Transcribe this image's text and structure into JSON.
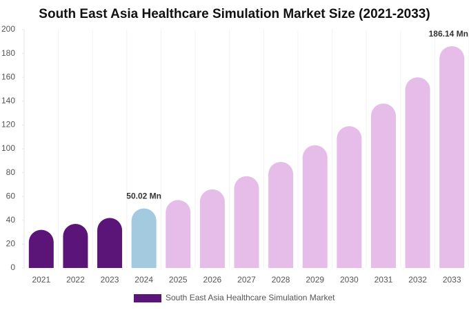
{
  "chart_data": {
    "type": "bar",
    "title": "South East Asia Healthcare Simulation Market Size (2021-2033)",
    "categories": [
      "2021",
      "2022",
      "2023",
      "2024",
      "2025",
      "2026",
      "2027",
      "2028",
      "2029",
      "2030",
      "2031",
      "2032",
      "2033"
    ],
    "series": [
      {
        "name": "South East Asia Healthcare Simulation Market",
        "color": "#5b1478",
        "values": [
          32,
          37,
          42,
          50.02,
          57,
          66,
          77,
          89,
          103,
          119,
          138,
          160,
          186.14
        ],
        "value_labels": [
          null,
          null,
          null,
          "50.02 Mn",
          null,
          null,
          null,
          null,
          null,
          null,
          null,
          null,
          "186.14 Mn"
        ],
        "colors": [
          "#5b1478",
          "#5b1478",
          "#5b1478",
          "#a3cadf",
          "#e6bde8",
          "#e6bde8",
          "#e6bde8",
          "#e6bde8",
          "#e6bde8",
          "#e6bde8",
          "#e6bde8",
          "#e6bde8",
          "#e6bde8"
        ]
      }
    ],
    "ylim": [
      0,
      200
    ],
    "yticks": [
      0,
      20,
      40,
      60,
      80,
      100,
      120,
      140,
      160,
      180,
      200
    ]
  }
}
